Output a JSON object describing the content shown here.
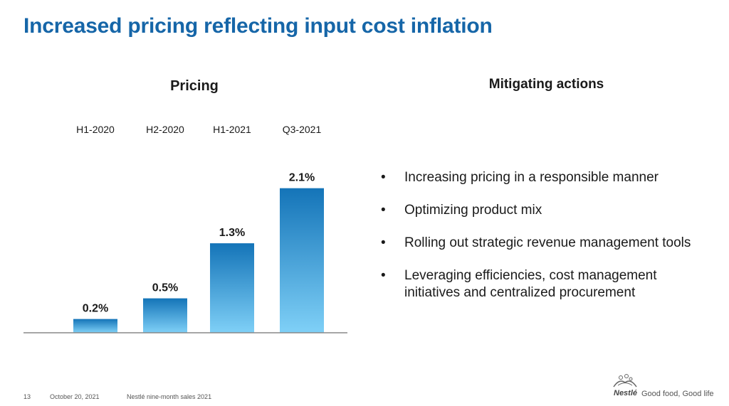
{
  "slide": {
    "title": "Increased pricing reflecting input cost inflation",
    "right_title": "Mitigating actions",
    "actions": [
      "Increasing pricing in a responsible manner",
      "Optimizing product mix",
      "Rolling out strategic revenue management tools",
      "Leveraging efficiencies, cost management initiatives and centralized procurement"
    ],
    "bullet": "•"
  },
  "chart_data": {
    "type": "bar",
    "title": "Pricing",
    "categories": [
      "H1-2020",
      "H2-2020",
      "H1-2021",
      "Q3-2021"
    ],
    "values": [
      0.2,
      0.5,
      1.3,
      2.1
    ],
    "value_labels": [
      "0.2%",
      "0.5%",
      "1.3%",
      "2.1%"
    ],
    "ylim": [
      0,
      2.2
    ],
    "grid": false,
    "category_labels_position": "top",
    "colors": {
      "bar_top": "#1474b8",
      "bar_bottom": "#7fd0f7",
      "axis": "#888888"
    }
  },
  "footer": {
    "page": "13",
    "date": "October 20, 2021",
    "doc": "Nestlé nine-month sales 2021",
    "brand": "Nestlé",
    "tagline": "Good food, Good life"
  }
}
